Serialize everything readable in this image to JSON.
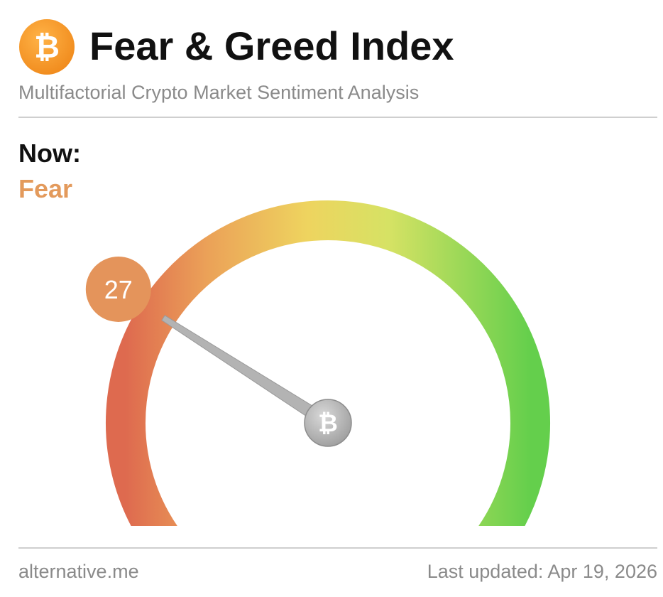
{
  "header": {
    "title": "Fear & Greed Index",
    "subtitle": "Multifactorial Crypto Market Sentiment Analysis",
    "logo_icon": "bitcoin-icon",
    "logo_glyph": "₿"
  },
  "status": {
    "now_label": "Now:",
    "classification": "Fear",
    "classification_color": "#e39a5c"
  },
  "gauge": {
    "value": "27",
    "value_number": 27,
    "min": 0,
    "max": 100,
    "badge_color": "#e4945b",
    "needle_color": "#b3b3b3",
    "hub_icon": "bitcoin-icon",
    "hub_glyph": "₿",
    "gradient_colors": [
      "#de6a4f",
      "#eeaa55",
      "#e9d45c",
      "#c9e063",
      "#6fd04e"
    ]
  },
  "footer": {
    "source": "alternative.me",
    "updated": "Last updated: Apr 19, 2026"
  }
}
